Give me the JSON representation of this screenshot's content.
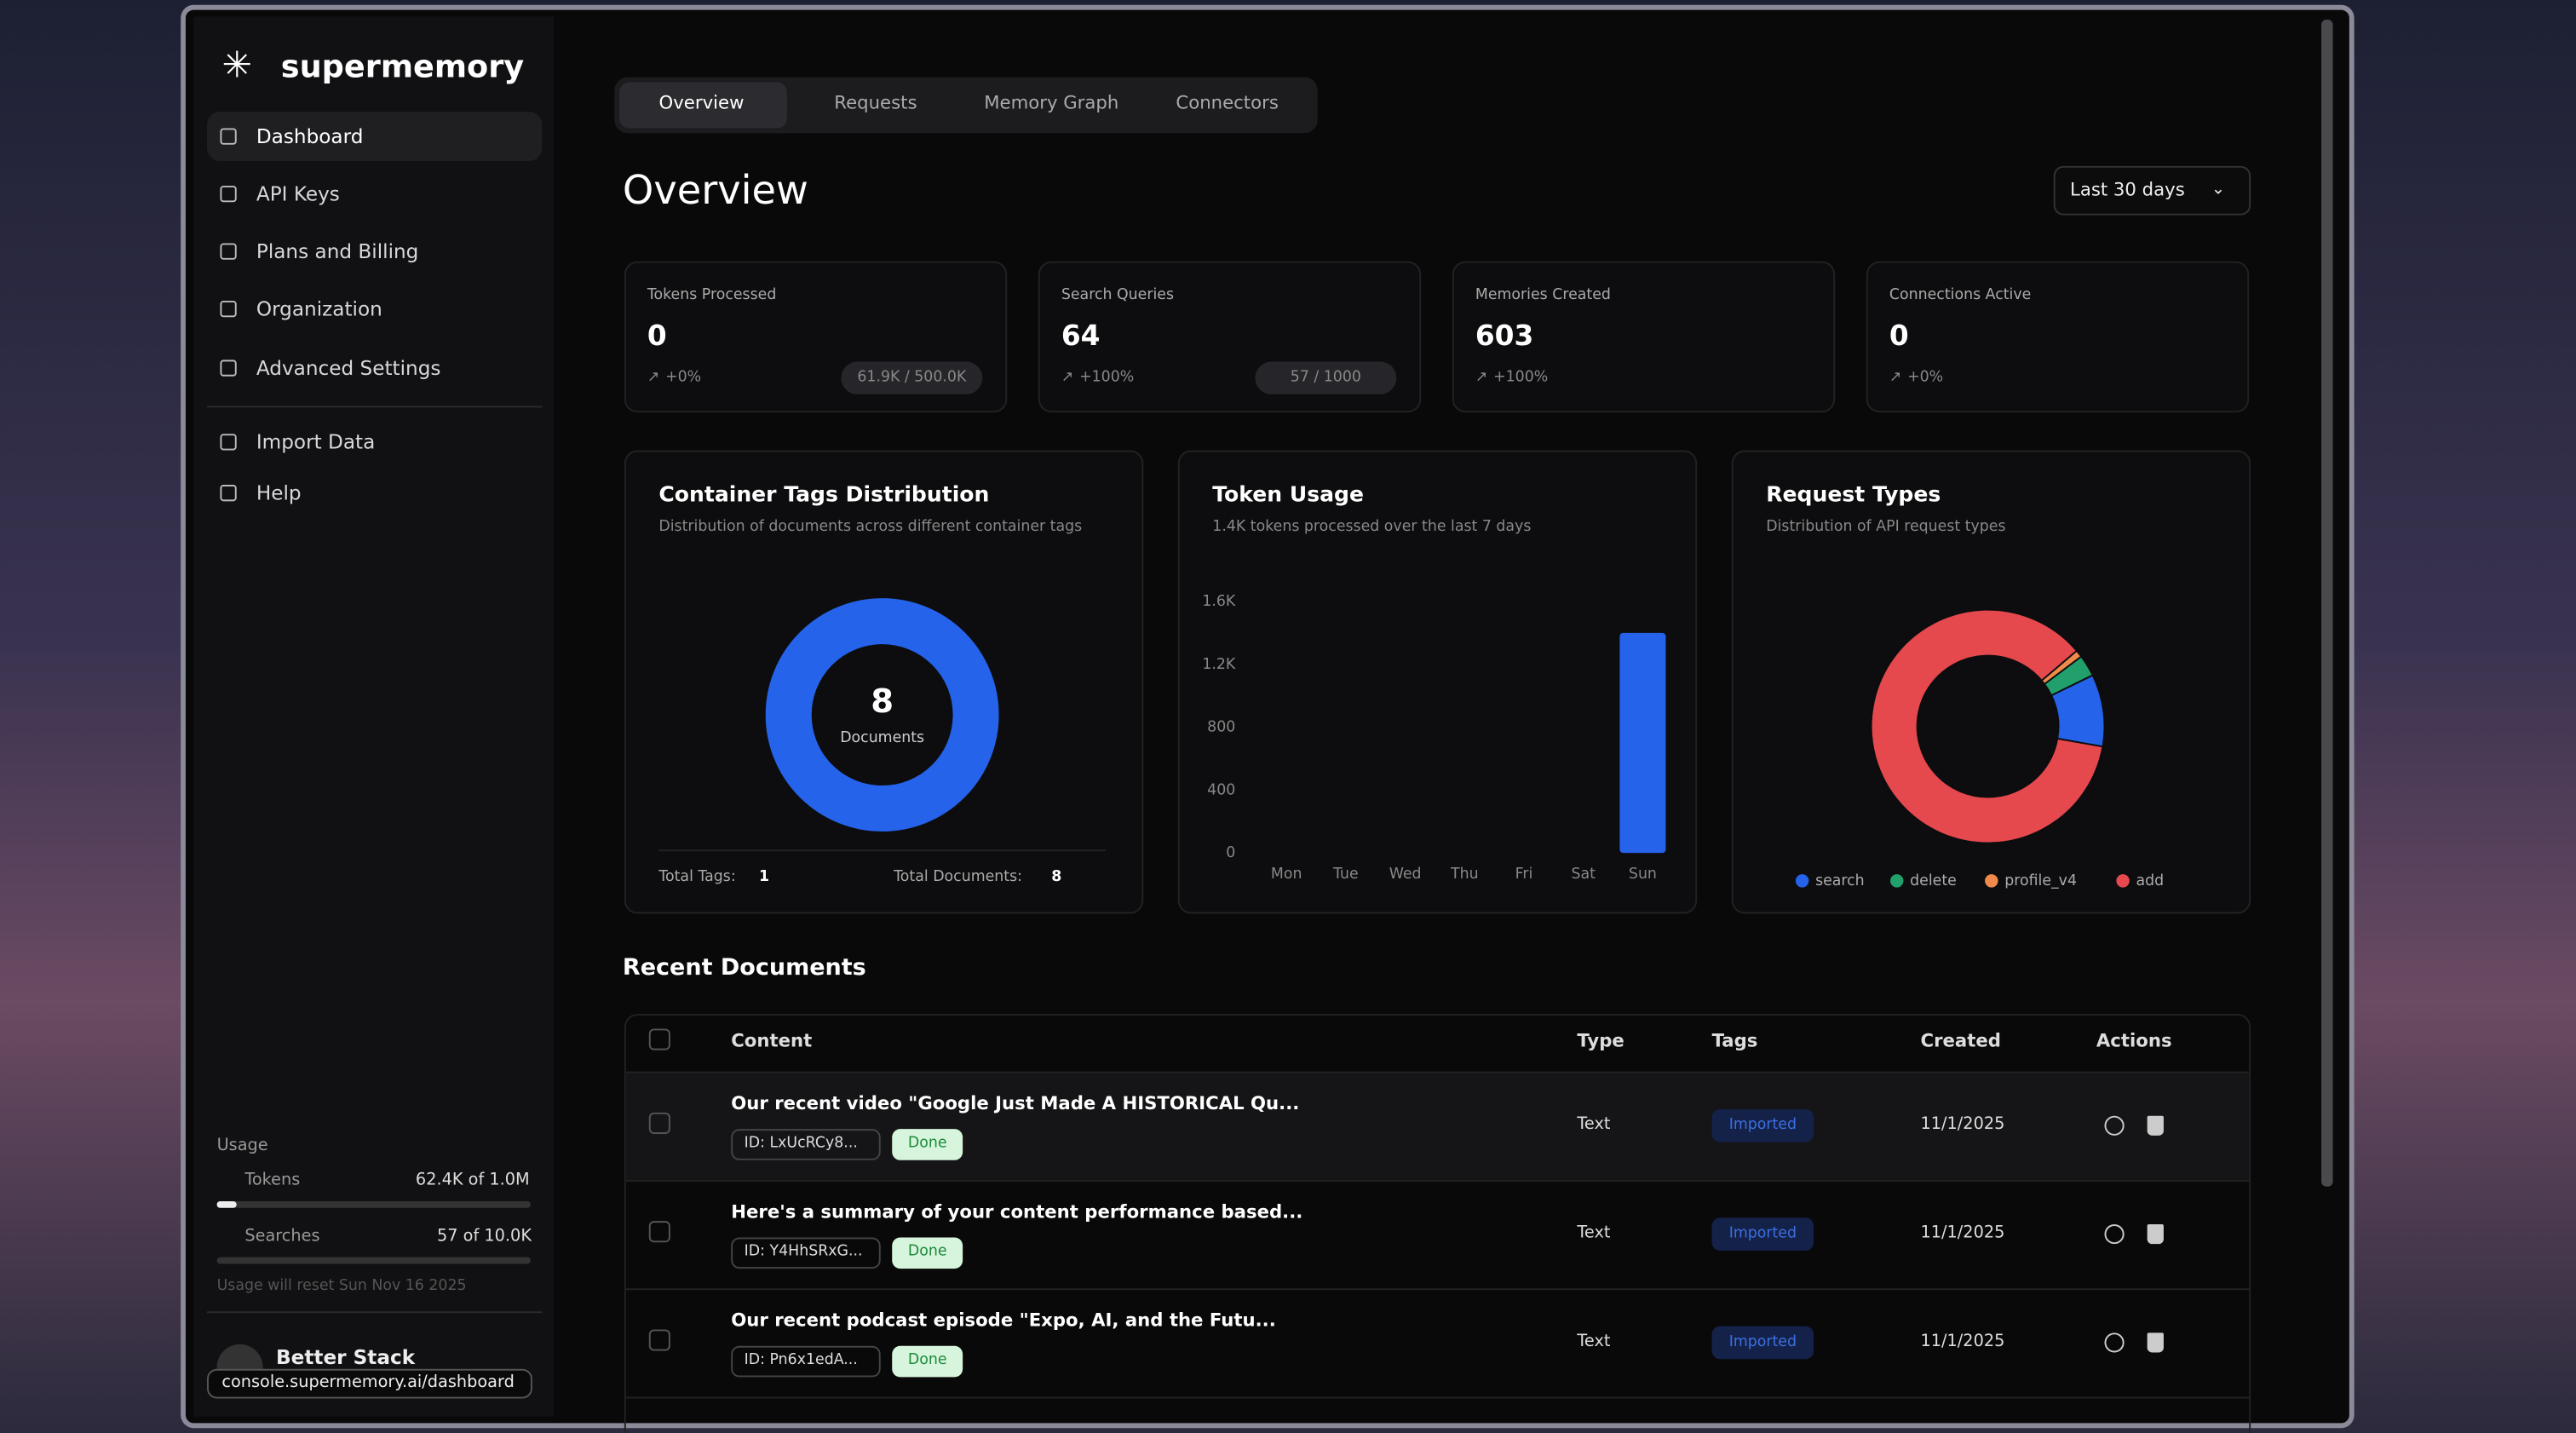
{
  "sidebar": {
    "brand": "supermemory",
    "nav": [
      "Dashboard",
      "API Keys",
      "Plans and Billing",
      "Organization",
      "Advanced Settings",
      "Import Data",
      "Help"
    ],
    "usage": {
      "title": "Usage",
      "tokens_label": "Tokens",
      "tokens_value": "62.4K of 1.0M",
      "searches_label": "Searches",
      "searches_value": "57 of 10.0K",
      "reset_note": "Usage will reset Sun Nov 16 2025"
    },
    "user": "Better Stack",
    "url": "console.supermemory.ai/dashboard"
  },
  "tabs": [
    "Overview",
    "Requests",
    "Memory Graph",
    "Connectors"
  ],
  "header": {
    "title": "Overview",
    "range": "Last 30 days"
  },
  "stats": [
    {
      "label": "Tokens Processed",
      "value": 0,
      "change": "+0%",
      "quota": "61.9K / 500.0K"
    },
    {
      "label": "Search Queries",
      "value": 64,
      "change": "+100%",
      "quota": "57 / 1000"
    },
    {
      "label": "Memories Created",
      "value": 603,
      "change": "+100%"
    },
    {
      "label": "Connections Active",
      "value": 0,
      "change": "+0%"
    }
  ],
  "charts": [
    {
      "type": "donut",
      "title": "Container Tags Distribution",
      "subtitle": "Distribution of documents across different container tags",
      "values": [
        8
      ],
      "color": "#2563eb",
      "center_label": "Documents",
      "tags_label": "Total Tags:",
      "tags": 1,
      "documents_label": "Total Documents:",
      "documents": 8
    },
    {
      "type": "bar",
      "title": "Token Usage",
      "subtitle": "1.4K tokens processed over the last 7 days",
      "categories": [
        "Mon",
        "Tue",
        "Wed",
        "Thu",
        "Fri",
        "Sat",
        "Sun"
      ],
      "values": [
        0,
        0,
        0,
        0,
        0,
        0,
        1400
      ],
      "color": "#2563eb",
      "ylim": [
        0,
        1600
      ],
      "yticks": [
        0,
        400,
        800,
        {
          "value": 1200,
          "label": "1.2K"
        },
        {
          "value": 1600,
          "label": "1.6K"
        }
      ]
    },
    {
      "type": "pie",
      "title": "Request Types",
      "subtitle": "Distribution of API request types",
      "categories": [
        "search",
        "delete",
        "profile_v4",
        "add"
      ],
      "values": [
        10,
        3,
        1,
        86
      ],
      "colors": [
        "#2563eb",
        "#22a06b",
        "#f08a4b",
        "#e5484d"
      ]
    }
  ],
  "recent_documents": {
    "title": "Recent Documents",
    "columns": [
      "Content",
      "Type",
      "Tags",
      "Created",
      "Actions"
    ],
    "rows": [
      {
        "content": "Our recent video \"Google Just Made A HISTORICAL Qu...",
        "id": "ID: LxUcRCy8...",
        "status": "Done",
        "type": "Text",
        "tag": "Imported",
        "created": "11/1/2025"
      },
      {
        "content": "Here's a summary of your content performance based...",
        "id": "ID: Y4HhSRxG...",
        "status": "Done",
        "type": "Text",
        "tag": "Imported",
        "created": "11/1/2025"
      },
      {
        "content": "Our recent podcast episode \"Expo, AI, and the Futu...",
        "id": "ID: Pn6x1edA...",
        "status": "Done",
        "type": "Text",
        "tag": "Imported",
        "created": "11/1/2025"
      }
    ]
  }
}
